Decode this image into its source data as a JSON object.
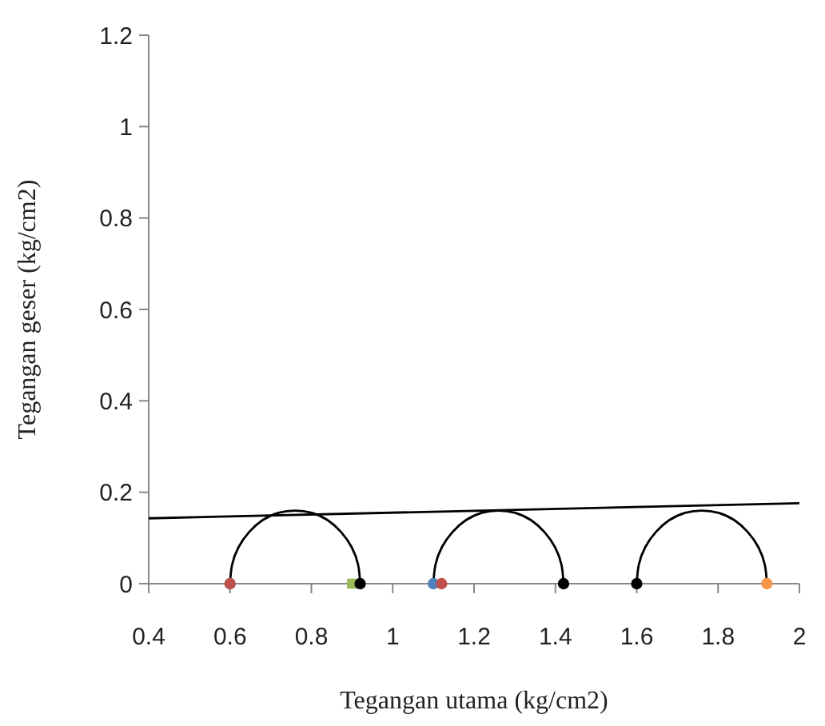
{
  "chart_data": {
    "type": "line",
    "xlabel": "Tegangan utama (kg/cm2)",
    "ylabel": "Tegangan geser (kg/cm2)",
    "xlim": [
      0.4,
      2
    ],
    "xticks": [
      0.4,
      0.6,
      0.8,
      1,
      1.2,
      1.4,
      1.6,
      1.8,
      2
    ],
    "ylim": [
      0,
      1.2
    ],
    "yticks": [
      0,
      0.2,
      0.4,
      0.6,
      0.8,
      1,
      1.2
    ],
    "grid": false,
    "marker": "none",
    "line_style": "solid",
    "series": [
      {
        "type": "line",
        "color": "#000000",
        "x": [
          0.4,
          2
        ],
        "values": [
          0.143,
          0.176
        ]
      },
      {
        "type": "line",
        "color": "#000000",
        "x": [
          0.6,
          0.605,
          0.621,
          0.647,
          0.68,
          0.719,
          0.76,
          0.801,
          0.84,
          0.873,
          0.899,
          0.915,
          0.92
        ],
        "values": [
          0,
          0.041,
          0.08,
          0.113,
          0.139,
          0.155,
          0.16,
          0.155,
          0.139,
          0.113,
          0.08,
          0.041,
          0
        ]
      },
      {
        "type": "line",
        "color": "#000000",
        "x": [
          1.1,
          1.105,
          1.121,
          1.147,
          1.18,
          1.219,
          1.26,
          1.301,
          1.34,
          1.373,
          1.399,
          1.415,
          1.42
        ],
        "values": [
          0,
          0.041,
          0.08,
          0.113,
          0.139,
          0.155,
          0.16,
          0.155,
          0.139,
          0.113,
          0.08,
          0.041,
          0
        ]
      },
      {
        "type": "line",
        "color": "#000000",
        "x": [
          1.6,
          1.605,
          1.621,
          1.647,
          1.68,
          1.719,
          1.76,
          1.801,
          1.84,
          1.873,
          1.899,
          1.915,
          1.92
        ],
        "values": [
          0,
          0.041,
          0.08,
          0.113,
          0.139,
          0.155,
          0.16,
          0.155,
          0.139,
          0.113,
          0.08,
          0.041,
          0
        ]
      },
      {
        "type": "scatter",
        "marker": "circle",
        "color": "#4f81bd",
        "x": [
          0.6,
          1.1
        ],
        "values": [
          0,
          0
        ]
      },
      {
        "type": "scatter",
        "marker": "circle",
        "color": "#c0504d",
        "x": [
          0.6,
          1.12
        ],
        "values": [
          0,
          0
        ]
      },
      {
        "type": "scatter",
        "marker": "square",
        "color": "#9bbb59",
        "x": [
          0.9
        ],
        "values": [
          0
        ]
      },
      {
        "type": "scatter",
        "marker": "circle",
        "color": "#000000",
        "x": [
          0.92,
          1.42,
          1.6
        ],
        "values": [
          0,
          0,
          0
        ]
      },
      {
        "type": "scatter",
        "marker": "circle",
        "color": "#f79646",
        "x": [
          1.92
        ],
        "values": [
          0
        ]
      }
    ]
  }
}
